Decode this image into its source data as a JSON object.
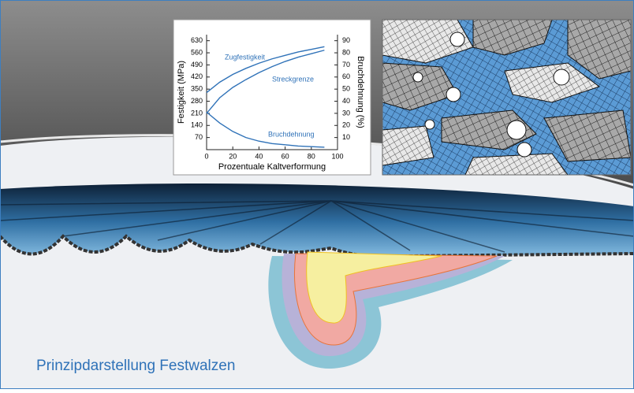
{
  "chart_data": {
    "type": "line",
    "xlabel": "Prozentuale Kaltverformung",
    "ylabel": "Festigkeit (MPa)",
    "y2label": "Bruchdehnung (%)",
    "x": [
      0,
      10,
      20,
      30,
      40,
      50,
      60,
      70,
      80,
      90
    ],
    "xlim": [
      0,
      100
    ],
    "xticks": [
      0,
      20,
      40,
      60,
      80,
      100
    ],
    "ylim": [
      0,
      665
    ],
    "yticks": [
      70,
      140,
      210,
      280,
      350,
      420,
      490,
      560,
      630
    ],
    "y2lim": [
      0,
      95
    ],
    "y2ticks": [
      10,
      20,
      30,
      40,
      50,
      60,
      70,
      80,
      90
    ],
    "grid": false,
    "series": [
      {
        "name": "Zugfestigkeit",
        "color": "#2f72b8",
        "values": [
          330,
          390,
          435,
          470,
          500,
          525,
          545,
          565,
          580,
          595
        ]
      },
      {
        "name": "Streckgrenze",
        "color": "#2f72b8",
        "values": [
          210,
          300,
          360,
          405,
          445,
          480,
          510,
          535,
          555,
          575
        ]
      },
      {
        "name": "Bruchdehnung",
        "color": "#2f72b8",
        "axis": "y2",
        "values": [
          31,
          22,
          15,
          10,
          7,
          5,
          4,
          3,
          2.5,
          2
        ]
      }
    ]
  },
  "caption": "Prinzipdarstellung Festwalzen"
}
